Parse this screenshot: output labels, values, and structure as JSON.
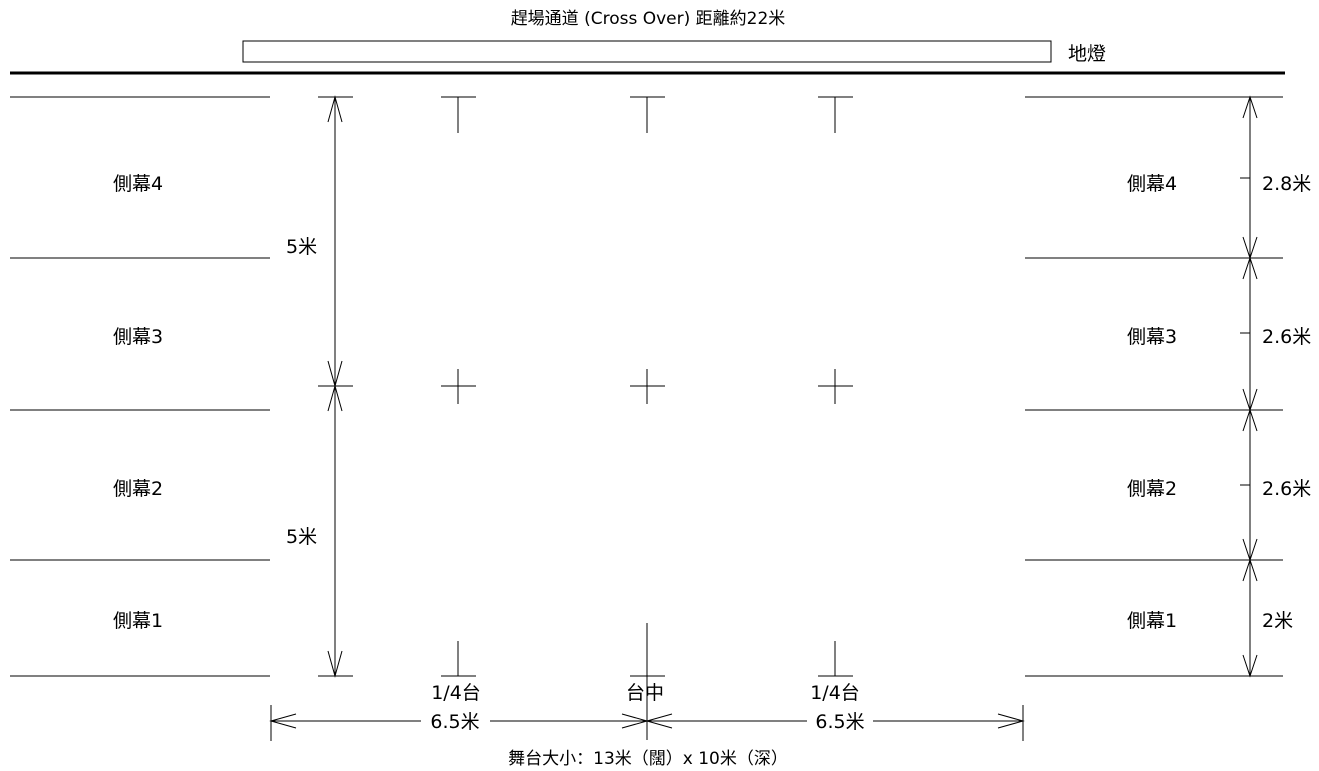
{
  "title": "趕場通道 (Cross Over) 距離約22米",
  "ground_light_label": "地燈",
  "left_wings": [
    "側幕4",
    "側幕3",
    "側幕2",
    "側幕1"
  ],
  "right_wings": [
    "側幕4",
    "側幕3",
    "側幕2",
    "側幕1"
  ],
  "right_dims": [
    "2.8米",
    "2.6米",
    "2.6米",
    "2米"
  ],
  "left_dims": [
    "5米",
    "5米"
  ],
  "bottom_marks": [
    "1/4台",
    "台中",
    "1/4台"
  ],
  "bottom_dims": [
    "6.5米",
    "6.5米"
  ],
  "stage_size": "舞台大小：13米（闊）x 10米（深）"
}
